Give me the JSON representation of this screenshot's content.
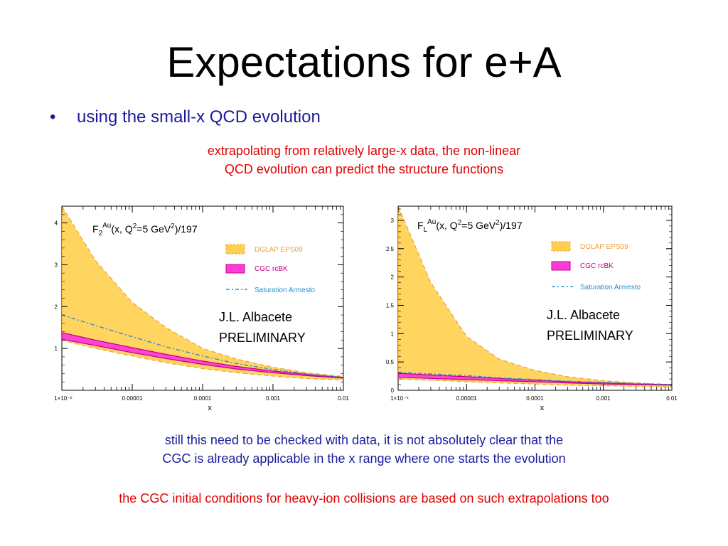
{
  "slide": {
    "title": "Expectations for e+A",
    "bullet": "using the small-x QCD evolution",
    "note_top_line1": "extrapolating from relatively large-x data, the non-linear",
    "note_top_line2": "QCD evolution can predict the structure functions",
    "note_mid_line1": "still this need to be checked with data, it is not absolutely clear that the",
    "note_mid_line2": "CGC is already applicable in the x range where one starts the evolution",
    "note_bottom": "the CGC initial conditions for heavy-ion collisions are based on such extrapolations too"
  },
  "colors": {
    "title": "#000000",
    "bullet": "#1a1a9c",
    "red_note": "#e00000",
    "dglap_fill": "#ffd04f",
    "dglap_edge": "#f0a030",
    "cgc_fill": "#ff3bd9",
    "cgc_edge": "#c0008a",
    "saturation": "#2a8fd0"
  },
  "chart_data": [
    {
      "type": "area",
      "title": "F2^Au(x, Q^2=5 GeV^2)/197",
      "title_parts": {
        "base": "F",
        "sub": "2",
        "sup": "Au",
        "rest1": "(x, Q",
        "q_sup": "2",
        "rest2": "=5 GeV",
        "gev_sup": "2",
        "rest3": ")/197"
      },
      "xlabel": "x",
      "x_scale": "log",
      "xlim": [
        1e-06,
        0.01
      ],
      "ylim": [
        0,
        4.4
      ],
      "x_ticks": [
        1e-06,
        1e-05,
        0.0001,
        0.001,
        0.01
      ],
      "x_tick_labels": [
        "1×10⁻⁶",
        "0.00001",
        "0.0001",
        "0.001",
        "0.01"
      ],
      "y_ticks": [
        1,
        2,
        3,
        4
      ],
      "y_tick_labels": [
        "1",
        "2",
        "3",
        "4"
      ],
      "x": [
        1e-06,
        3e-06,
        1e-05,
        3e-05,
        0.0001,
        0.0003,
        0.001,
        0.003,
        0.01
      ],
      "series": [
        {
          "name": "DGLAP EPS09",
          "kind": "band",
          "upper": [
            4.4,
            3.1,
            2.1,
            1.5,
            1.0,
            0.75,
            0.55,
            0.42,
            0.33
          ],
          "lower": [
            1.2,
            1.0,
            0.82,
            0.66,
            0.52,
            0.42,
            0.34,
            0.28,
            0.25
          ]
        },
        {
          "name": "CGC rcBK",
          "kind": "band",
          "upper": [
            1.38,
            1.2,
            1.02,
            0.86,
            0.7,
            0.57,
            0.46,
            0.38,
            0.31
          ],
          "lower": [
            1.22,
            1.07,
            0.9,
            0.76,
            0.62,
            0.51,
            0.42,
            0.35,
            0.29
          ]
        },
        {
          "name": "Saturation Armesto",
          "kind": "line",
          "values": [
            1.8,
            1.55,
            1.28,
            1.04,
            0.82,
            0.64,
            0.5,
            0.39,
            0.31
          ]
        }
      ],
      "annotation_line1": "J.L. Albacete",
      "annotation_line2": "PRELIMINARY",
      "legend_position": "top-right"
    },
    {
      "type": "area",
      "title": "FL^Au(x, Q^2=5 GeV^2)/197",
      "title_parts": {
        "base": "F",
        "sub": "L",
        "sup": "Au",
        "rest1": "(x, Q",
        "q_sup": "2",
        "rest2": "=5 GeV",
        "gev_sup": "2",
        "rest3": ")/197"
      },
      "xlabel": "x",
      "x_scale": "log",
      "xlim": [
        1e-06,
        0.01
      ],
      "ylim": [
        0,
        3.25
      ],
      "x_ticks": [
        1e-06,
        1e-05,
        0.0001,
        0.001,
        0.01
      ],
      "x_tick_labels": [
        "1×10⁻⁶",
        "0.00001",
        "0.0001",
        "0.001",
        "0.01"
      ],
      "y_ticks": [
        0,
        0.5,
        1,
        1.5,
        2,
        2.5,
        3
      ],
      "y_tick_labels": [
        "0",
        "0.5",
        "1",
        "1.5",
        "2",
        "2.5",
        "3"
      ],
      "x": [
        1e-06,
        3e-06,
        1e-05,
        3e-05,
        0.0001,
        0.0003,
        0.001,
        0.003,
        0.01
      ],
      "series": [
        {
          "name": "DGLAP EPS09",
          "kind": "band",
          "upper": [
            3.25,
            1.9,
            0.95,
            0.55,
            0.35,
            0.24,
            0.17,
            0.13,
            0.1
          ],
          "lower": [
            0.2,
            0.18,
            0.15,
            0.13,
            0.11,
            0.09,
            0.08,
            0.07,
            0.06
          ]
        },
        {
          "name": "CGC rcBK",
          "kind": "band",
          "upper": [
            0.3,
            0.27,
            0.24,
            0.21,
            0.18,
            0.15,
            0.13,
            0.11,
            0.1
          ],
          "lower": [
            0.23,
            0.21,
            0.19,
            0.17,
            0.15,
            0.13,
            0.11,
            0.1,
            0.09
          ]
        },
        {
          "name": "Saturation Armesto",
          "kind": "line",
          "values": [
            0.32,
            0.29,
            0.26,
            0.22,
            0.19,
            0.16,
            0.14,
            0.12,
            0.1
          ]
        }
      ],
      "annotation_line1": "J.L. Albacete",
      "annotation_line2": "PRELIMINARY",
      "legend_position": "top-right"
    }
  ]
}
